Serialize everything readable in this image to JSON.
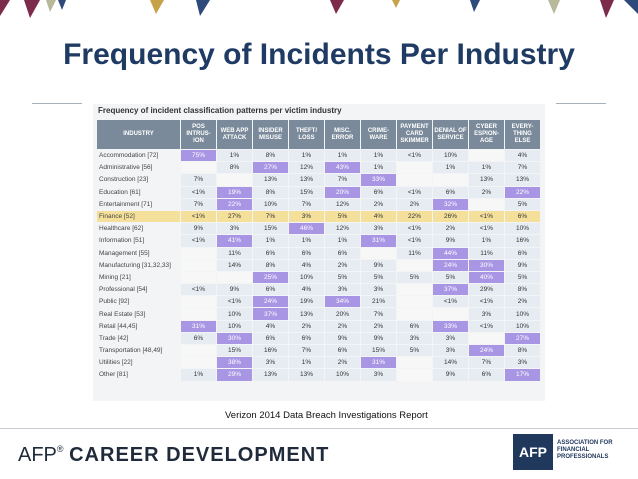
{
  "slide": {
    "title": "Frequency of Incidents Per Industry",
    "caption": "Verizon 2014 Data Breach Investigations Report"
  },
  "figure": {
    "title": "Frequency of incident classification patterns per victim industry",
    "headers": [
      "INDUSTRY",
      "POS INTRUS-ION",
      "WEB APP ATTACK",
      "INSIDER MISUSE",
      "THEFT/ LOSS",
      "MISC. ERROR",
      "CRIME-WARE",
      "PAYMENT CARD SKIMMER",
      "DENIAL OF SERVICE",
      "CYBER ESPION-AGE",
      "EVERY-THING ELSE"
    ],
    "rows": [
      {
        "industry": "Accommodation [72]",
        "values": [
          "75%",
          "1%",
          "8%",
          "1%",
          "1%",
          "1%",
          "<1%",
          "10%",
          "",
          "4%"
        ]
      },
      {
        "industry": "Administrative [56]",
        "values": [
          "",
          "8%",
          "27%",
          "12%",
          "43%",
          "1%",
          "",
          "1%",
          "1%",
          "7%"
        ]
      },
      {
        "industry": "Construction [23]",
        "values": [
          "7%",
          "",
          "13%",
          "13%",
          "7%",
          "33%",
          "",
          "",
          "13%",
          "13%"
        ]
      },
      {
        "industry": "Education [61]",
        "values": [
          "<1%",
          "19%",
          "8%",
          "15%",
          "20%",
          "6%",
          "<1%",
          "6%",
          "2%",
          "22%"
        ]
      },
      {
        "industry": "Entertainment [71]",
        "values": [
          "7%",
          "22%",
          "10%",
          "7%",
          "12%",
          "2%",
          "2%",
          "32%",
          "",
          "5%"
        ]
      },
      {
        "industry": "Finance [52]",
        "values": [
          "<1%",
          "27%",
          "7%",
          "3%",
          "5%",
          "4%",
          "22%",
          "26%",
          "<1%",
          "6%"
        ]
      },
      {
        "industry": "Healthcare [62]",
        "values": [
          "9%",
          "3%",
          "15%",
          "46%",
          "12%",
          "3%",
          "<1%",
          "2%",
          "<1%",
          "10%"
        ]
      },
      {
        "industry": "Information [51]",
        "values": [
          "<1%",
          "41%",
          "1%",
          "1%",
          "1%",
          "31%",
          "<1%",
          "9%",
          "1%",
          "16%"
        ]
      },
      {
        "industry": "Management [55]",
        "values": [
          "",
          "11%",
          "6%",
          "6%",
          "6%",
          "",
          "11%",
          "44%",
          "11%",
          "6%"
        ]
      },
      {
        "industry": "Manufacturing [31,32,33]",
        "values": [
          "",
          "14%",
          "8%",
          "4%",
          "2%",
          "9%",
          "",
          "24%",
          "30%",
          "9%"
        ]
      },
      {
        "industry": "Mining [21]",
        "values": [
          "",
          "",
          "25%",
          "10%",
          "5%",
          "5%",
          "5%",
          "5%",
          "40%",
          "5%"
        ]
      },
      {
        "industry": "Professional [54]",
        "values": [
          "<1%",
          "9%",
          "6%",
          "4%",
          "3%",
          "3%",
          "",
          "37%",
          "29%",
          "8%"
        ]
      },
      {
        "industry": "Public [92]",
        "values": [
          "",
          "<1%",
          "24%",
          "19%",
          "34%",
          "21%",
          "",
          "<1%",
          "<1%",
          "2%"
        ]
      },
      {
        "industry": "Real Estate [53]",
        "values": [
          "",
          "10%",
          "37%",
          "13%",
          "20%",
          "7%",
          "",
          "",
          "3%",
          "10%"
        ]
      },
      {
        "industry": "Retail [44,45]",
        "values": [
          "31%",
          "10%",
          "4%",
          "2%",
          "2%",
          "2%",
          "6%",
          "33%",
          "<1%",
          "10%"
        ]
      },
      {
        "industry": "Trade [42]",
        "values": [
          "6%",
          "30%",
          "6%",
          "6%",
          "9%",
          "9%",
          "3%",
          "3%",
          "",
          "27%"
        ]
      },
      {
        "industry": "Transportation [48,49]",
        "values": [
          "",
          "15%",
          "16%",
          "7%",
          "6%",
          "15%",
          "5%",
          "3%",
          "24%",
          "8%"
        ]
      },
      {
        "industry": "Utilities [22]",
        "values": [
          "",
          "38%",
          "3%",
          "1%",
          "2%",
          "31%",
          "",
          "14%",
          "7%",
          "3%"
        ]
      },
      {
        "industry": "Other [81]",
        "values": [
          "1%",
          "29%",
          "13%",
          "13%",
          "10%",
          "3%",
          "",
          "9%",
          "6%",
          "17%"
        ]
      }
    ],
    "highlight_row": "Finance [52]",
    "highlight_cells": [
      [
        0,
        0
      ],
      [
        3,
        1
      ],
      [
        3,
        4
      ],
      [
        3,
        9
      ],
      [
        4,
        1
      ],
      [
        4,
        7
      ],
      [
        6,
        3
      ],
      [
        7,
        1
      ],
      [
        7,
        5
      ],
      [
        8,
        7
      ],
      [
        9,
        7
      ],
      [
        9,
        8
      ],
      [
        10,
        2
      ],
      [
        10,
        8
      ],
      [
        11,
        7
      ],
      [
        12,
        2
      ],
      [
        12,
        4
      ],
      [
        13,
        2
      ],
      [
        14,
        0
      ],
      [
        14,
        7
      ],
      [
        15,
        1
      ],
      [
        15,
        9
      ],
      [
        16,
        8
      ],
      [
        17,
        1
      ],
      [
        17,
        5
      ],
      [
        18,
        1
      ],
      [
        18,
        9
      ],
      [
        1,
        2
      ],
      [
        1,
        4
      ],
      [
        2,
        5
      ]
    ],
    "colors": {
      "header": "#7a8a9a",
      "highlight_purple": "#a896e4",
      "finance_row": "#f4e09a",
      "cell": "#e7ecf2"
    }
  },
  "footer": {
    "brand": "AFP",
    "reg": "®",
    "product": "CAREER DEVELOPMENT",
    "logo_text": "AFP",
    "assoc_lines": [
      "ASSOCIATION FOR",
      "FINANCIAL",
      "PROFESSIONALS"
    ]
  }
}
